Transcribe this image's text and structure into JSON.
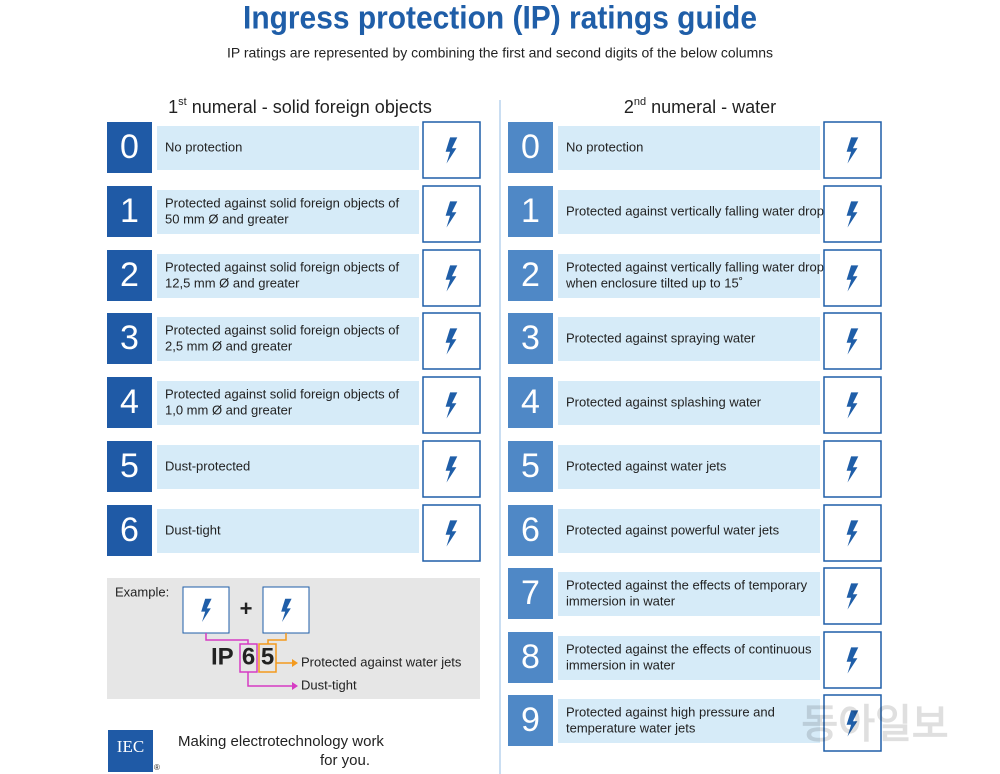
{
  "header": {
    "title": "Ingress protection (IP) ratings guide",
    "subtitle": "IP ratings are represented by combining the first and second digits of the below columns"
  },
  "columns": [
    {
      "heading": {
        "number": "1",
        "suffix": "st",
        "text": "numeral - solid foreign objects"
      },
      "rows": [
        {
          "digit": "0",
          "lines": [
            "No protection"
          ]
        },
        {
          "digit": "1",
          "lines": [
            "Protected against solid foreign objects of",
            "50 mm Ø and greater"
          ]
        },
        {
          "digit": "2",
          "lines": [
            "Protected against solid foreign objects of",
            "12,5 mm Ø and greater"
          ]
        },
        {
          "digit": "3",
          "lines": [
            "Protected against solid foreign objects of",
            "2,5 mm Ø and greater"
          ]
        },
        {
          "digit": "4",
          "lines": [
            "Protected against solid foreign objects of",
            "1,0 mm Ø and greater"
          ]
        },
        {
          "digit": "5",
          "lines": [
            "Dust-protected"
          ]
        },
        {
          "digit": "6",
          "lines": [
            "Dust-tight"
          ]
        }
      ]
    },
    {
      "heading": {
        "number": "2",
        "suffix": "nd",
        "text": "numeral - water"
      },
      "rows": [
        {
          "digit": "0",
          "lines": [
            "No protection"
          ]
        },
        {
          "digit": "1",
          "lines": [
            "Protected against vertically falling water drops"
          ]
        },
        {
          "digit": "2",
          "lines": [
            "Protected against vertically falling water drops",
            "when enclosure tilted up to 15˚"
          ]
        },
        {
          "digit": "3",
          "lines": [
            "Protected against spraying water"
          ]
        },
        {
          "digit": "4",
          "lines": [
            "Protected against splashing water"
          ]
        },
        {
          "digit": "5",
          "lines": [
            "Protected against water jets"
          ]
        },
        {
          "digit": "6",
          "lines": [
            "Protected against powerful water jets"
          ]
        },
        {
          "digit": "7",
          "lines": [
            "Protected against the effects of temporary",
            "immersion in water"
          ]
        },
        {
          "digit": "8",
          "lines": [
            "Protected against the effects of continuous",
            "immersion in water"
          ]
        },
        {
          "digit": "9",
          "lines": [
            "Protected against high pressure and",
            "temperature water jets"
          ]
        }
      ]
    }
  ],
  "example": {
    "label": "Example:",
    "plus": "+",
    "prefix": "IP",
    "first_digit": "6",
    "second_digit": "5",
    "second_meaning": "Protected against water jets",
    "first_meaning": "Dust-tight"
  },
  "footer": {
    "logo": "IEC",
    "registered": "®",
    "tagline": [
      "Making  electrotechnology work",
      "for you."
    ]
  },
  "watermark": "동아일보"
}
